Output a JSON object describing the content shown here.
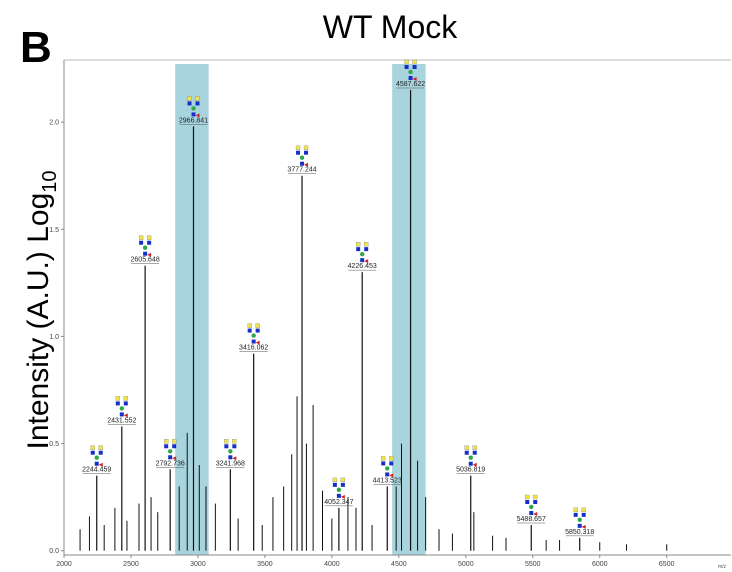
{
  "panel_label": "B",
  "chart_data": {
    "type": "spectrum",
    "title": "WT Mock",
    "ylabel": "Intensity (A.U.) Log",
    "ylabel_sub": "10",
    "xlabel": "m/z",
    "x": [
      2244.459,
      2431.552,
      2605.648,
      2792.736,
      2966.841,
      3241.968,
      3416.062,
      3777.244,
      4052.347,
      4226.453,
      4413.523,
      4587.622,
      5036.819,
      5488.657,
      5850.318
    ],
    "values": [
      0.35,
      0.58,
      1.33,
      0.38,
      1.98,
      0.38,
      0.92,
      1.75,
      0.2,
      1.3,
      0.3,
      2.15,
      0.35,
      0.12,
      0.06
    ],
    "minor_x": [
      2120,
      2190,
      2300,
      2380,
      2470,
      2560,
      2650,
      2700,
      2860,
      2920,
      3010,
      3060,
      3130,
      3300,
      3480,
      3560,
      3640,
      3700,
      3740,
      3810,
      3860,
      3930,
      4000,
      4120,
      4180,
      4300,
      4480,
      4520,
      4640,
      4700,
      4800,
      4900,
      5060,
      5200,
      5300,
      5600,
      5700,
      6000,
      6200,
      6500
    ],
    "minor_values": [
      0.1,
      0.16,
      0.12,
      0.2,
      0.14,
      0.22,
      0.25,
      0.18,
      0.3,
      0.55,
      0.4,
      0.3,
      0.22,
      0.15,
      0.12,
      0.25,
      0.3,
      0.45,
      0.72,
      0.5,
      0.68,
      0.28,
      0.15,
      0.25,
      0.2,
      0.12,
      0.3,
      0.5,
      0.42,
      0.25,
      0.1,
      0.08,
      0.18,
      0.07,
      0.06,
      0.05,
      0.05,
      0.04,
      0.03,
      0.03
    ],
    "highlight_ranges": [
      [
        2830,
        3080
      ],
      [
        4450,
        4700
      ]
    ],
    "xlim": [
      2000,
      6980
    ],
    "ylim": [
      -0.02,
      2.29
    ],
    "xticks": [
      2000,
      2500,
      3000,
      3500,
      4000,
      4500,
      5000,
      5500,
      6000,
      6500
    ],
    "yticks": [
      {
        "value": 0,
        "label": "0.0"
      },
      0.5,
      {
        "value": 1,
        "label": "1.0"
      },
      1.5,
      {
        "value": 2,
        "label": "2.0"
      }
    ],
    "color": "#111111",
    "highlight_color": "#a8d4dd"
  }
}
